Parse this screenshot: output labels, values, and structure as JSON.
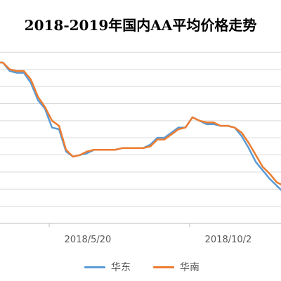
{
  "chart_data": {
    "type": "line",
    "title": "2018-2019年国内AA平均价格走势",
    "xlabel": "",
    "ylabel": "",
    "x_ticks": [
      "2018/5/20",
      "2018/10/2"
    ],
    "x": [
      0,
      1,
      2,
      3,
      4,
      5,
      6,
      7,
      8,
      9,
      10,
      11,
      12,
      13,
      14,
      15,
      16,
      17,
      18,
      19,
      20,
      21,
      22,
      23,
      24,
      25,
      26,
      27,
      28,
      29,
      30,
      31,
      32,
      33,
      34,
      35,
      36,
      37,
      38,
      39,
      40,
      41
    ],
    "ylim": [
      0,
      11
    ],
    "grid": true,
    "legend": "bottom",
    "series": [
      {
        "name": "华东",
        "color": "#5B9BD5",
        "values": [
          9.4,
          9.4,
          8.9,
          8.8,
          8.8,
          8.2,
          7.2,
          6.7,
          5.6,
          5.5,
          4.2,
          3.9,
          4.0,
          4.1,
          4.3,
          4.3,
          4.3,
          4.3,
          4.4,
          4.4,
          4.4,
          4.4,
          4.6,
          5.0,
          5.0,
          5.3,
          5.6,
          5.6,
          6.2,
          6.0,
          5.8,
          5.8,
          5.7,
          5.7,
          5.6,
          5.1,
          4.4,
          3.6,
          3.1,
          2.6,
          2.2,
          1.8
        ]
      },
      {
        "name": "华南",
        "color": "#ED7D31",
        "values": [
          9.4,
          9.4,
          9.0,
          8.9,
          8.9,
          8.4,
          7.4,
          6.8,
          6.0,
          5.7,
          4.3,
          3.9,
          4.0,
          4.2,
          4.3,
          4.3,
          4.3,
          4.3,
          4.4,
          4.4,
          4.4,
          4.4,
          4.5,
          4.9,
          4.9,
          5.2,
          5.5,
          5.6,
          6.2,
          6.0,
          5.9,
          5.9,
          5.7,
          5.7,
          5.6,
          5.3,
          4.7,
          4.0,
          3.3,
          2.9,
          2.4,
          2.2
        ]
      }
    ]
  }
}
